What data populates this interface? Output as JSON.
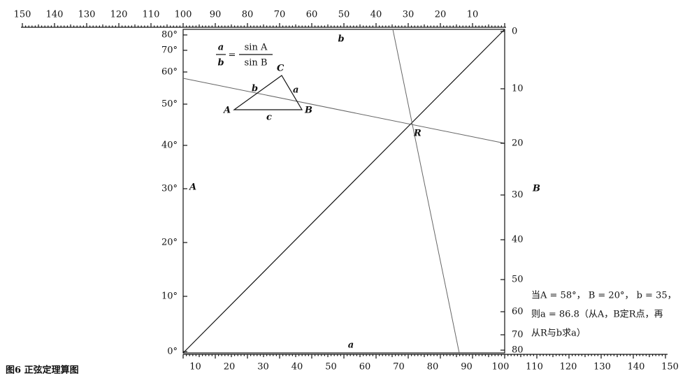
{
  "top_scale": {
    "labels": [
      "150",
      "140",
      "130",
      "120",
      "110",
      "100",
      "90",
      "80",
      "70",
      "60",
      "50",
      "40",
      "30",
      "20",
      "10"
    ]
  },
  "bottom_scale": {
    "labels": [
      "10",
      "20",
      "30",
      "40",
      "50",
      "60",
      "70",
      "80",
      "90",
      "100",
      "110",
      "120",
      "130",
      "140",
      "150"
    ]
  },
  "a_scale": {
    "name": "A",
    "labels": [
      "0°",
      "10°",
      "20°",
      "30°",
      "40°",
      "50°",
      "60°",
      "70°",
      "80°"
    ]
  },
  "b_scale": {
    "name": "B",
    "labels": [
      "0",
      "10",
      "20",
      "30",
      "40",
      "50",
      "60",
      "70",
      "80"
    ]
  },
  "top_label": "b",
  "bottom_label": "a",
  "point_label": "R",
  "formula": {
    "lhs_num": "a",
    "lhs_den": "b",
    "eq": "=",
    "rhs_num": "sin A",
    "rhs_den": "sin B"
  },
  "triangle": {
    "vertex_a": "A",
    "vertex_b": "B",
    "vertex_c": "C",
    "side_a": "a",
    "side_b": "b",
    "side_c": "c"
  },
  "example": {
    "lines": [
      "当A = 58°， B = 20°，    b = 35，",
      "则a = 86.8（从A，B定R点，再",
      "从R与b求a）"
    ]
  },
  "caption": "图6  正弦定理算图"
}
